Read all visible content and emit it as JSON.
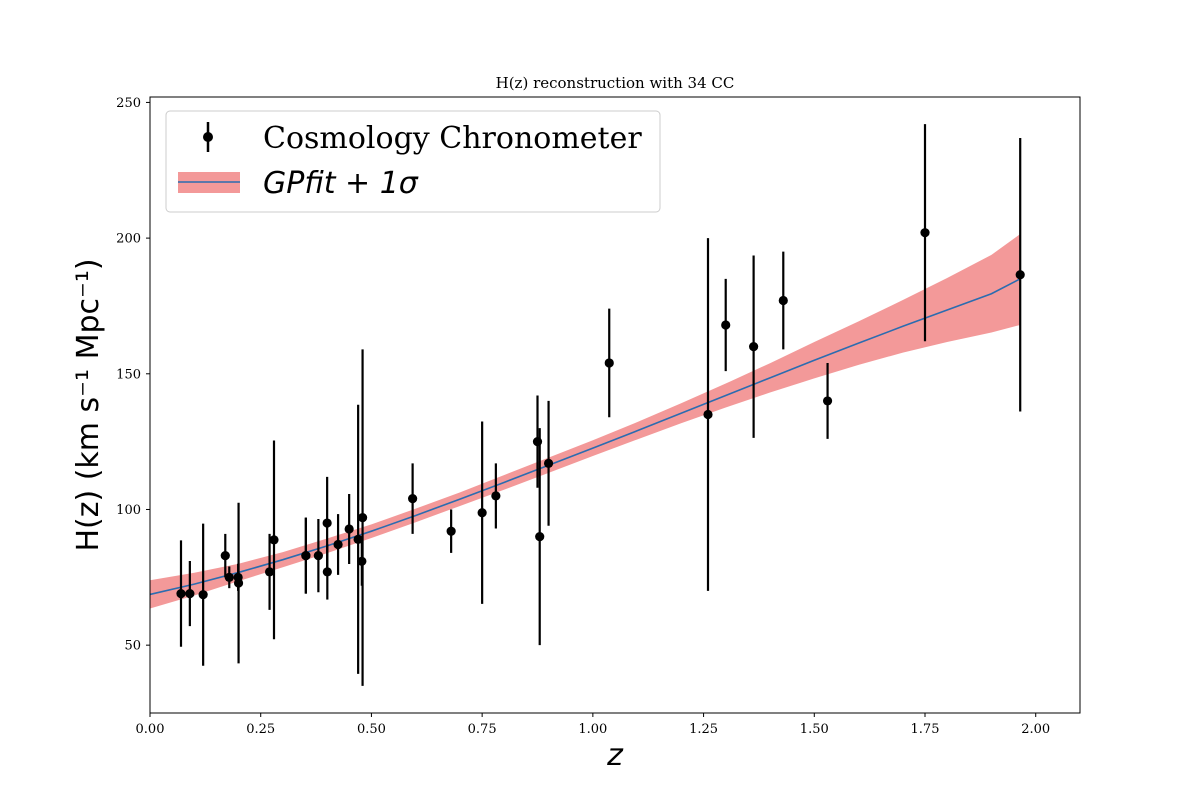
{
  "chart_data": {
    "type": "scatter",
    "title": "H(z) reconstruction with 34 CC",
    "xlabel": "z",
    "ylabel": "H(z) (km s⁻¹ Mpc⁻¹)",
    "xlim": [
      0.0,
      2.1
    ],
    "ylim": [
      25,
      252
    ],
    "xticks": [
      "0.00",
      "0.25",
      "0.50",
      "0.75",
      "1.00",
      "1.25",
      "1.50",
      "1.75",
      "2.00"
    ],
    "yticks": [
      "50",
      "100",
      "150",
      "200",
      "250"
    ],
    "legend_position": "top-left",
    "legend": {
      "points_label": "Cosmology Chronometer",
      "fit_label": "GPfit + 1σ"
    },
    "colors": {
      "points": "#000000",
      "fit_line": "#2b6cb0",
      "band": "#f08080"
    },
    "series": [
      {
        "name": "Cosmology Chronometer",
        "type": "errorbar",
        "points": [
          {
            "x": 0.07,
            "y": 69.0,
            "err": 19.6
          },
          {
            "x": 0.09,
            "y": 69.0,
            "err": 12.0
          },
          {
            "x": 0.12,
            "y": 68.6,
            "err": 26.2
          },
          {
            "x": 0.17,
            "y": 83.0,
            "err": 8.0
          },
          {
            "x": 0.179,
            "y": 75.0,
            "err": 4.0
          },
          {
            "x": 0.199,
            "y": 75.0,
            "err": 5.0
          },
          {
            "x": 0.2,
            "y": 72.9,
            "err": 29.6
          },
          {
            "x": 0.27,
            "y": 77.0,
            "err": 14.0
          },
          {
            "x": 0.28,
            "y": 88.8,
            "err": 36.6
          },
          {
            "x": 0.352,
            "y": 83.0,
            "err": 14.0
          },
          {
            "x": 0.3802,
            "y": 83.0,
            "err": 13.5
          },
          {
            "x": 0.4,
            "y": 95.0,
            "err": 17.0
          },
          {
            "x": 0.4004,
            "y": 77.0,
            "err": 10.2
          },
          {
            "x": 0.4247,
            "y": 87.1,
            "err": 11.2
          },
          {
            "x": 0.4497,
            "y": 92.8,
            "err": 12.9
          },
          {
            "x": 0.47,
            "y": 89.0,
            "err": 49.6
          },
          {
            "x": 0.4783,
            "y": 80.9,
            "err": 9.0
          },
          {
            "x": 0.48,
            "y": 97.0,
            "err": 62.0
          },
          {
            "x": 0.593,
            "y": 104.0,
            "err": 13.0
          },
          {
            "x": 0.68,
            "y": 92.0,
            "err": 8.0
          },
          {
            "x": 0.75,
            "y": 98.8,
            "err": 33.6
          },
          {
            "x": 0.781,
            "y": 105.0,
            "err": 12.0
          },
          {
            "x": 0.875,
            "y": 125.0,
            "err": 17.0
          },
          {
            "x": 0.88,
            "y": 90.0,
            "err": 40.0
          },
          {
            "x": 0.9,
            "y": 117.0,
            "err": 23.0
          },
          {
            "x": 1.037,
            "y": 154.0,
            "err": 20.0
          },
          {
            "x": 1.3,
            "y": 168.0,
            "err": 17.0
          },
          {
            "x": 1.363,
            "y": 160.0,
            "err": 33.6
          },
          {
            "x": 1.43,
            "y": 177.0,
            "err": 18.0
          },
          {
            "x": 1.53,
            "y": 140.0,
            "err": 14.0
          },
          {
            "x": 1.75,
            "y": 202.0,
            "err": 40.0
          },
          {
            "x": 1.965,
            "y": 186.5,
            "err": 50.4
          },
          {
            "x": 1.26,
            "y": 135.0,
            "err": 65.0
          },
          {
            "x": 0.3519,
            "y": 83.0,
            "err": 14.0
          }
        ]
      },
      {
        "name": "GPfit + 1σ",
        "type": "line_band",
        "x": [
          0.0,
          0.1,
          0.2,
          0.3,
          0.4,
          0.5,
          0.6,
          0.7,
          0.8,
          0.9,
          1.0,
          1.1,
          1.2,
          1.3,
          1.4,
          1.5,
          1.6,
          1.7,
          1.8,
          1.9,
          1.965
        ],
        "y": [
          68.7,
          72.5,
          76.8,
          81.5,
          86.6,
          92.0,
          97.8,
          103.8,
          110.0,
          116.3,
          122.6,
          129.0,
          135.5,
          142.0,
          148.5,
          155.0,
          161.3,
          167.5,
          173.5,
          179.5,
          185.0
        ],
        "lower": [
          63.5,
          68.3,
          73.6,
          78.7,
          83.9,
          89.5,
          95.3,
          101.3,
          107.3,
          113.5,
          119.7,
          125.8,
          131.8,
          137.6,
          143.1,
          148.3,
          153.3,
          157.8,
          161.7,
          165.2,
          168.0
        ],
        "upper": [
          73.9,
          76.7,
          80.0,
          84.3,
          89.3,
          94.5,
          100.3,
          106.3,
          112.7,
          119.1,
          125.5,
          132.2,
          139.2,
          146.4,
          153.9,
          161.7,
          169.3,
          177.2,
          185.3,
          193.8,
          201.5
        ]
      }
    ]
  }
}
